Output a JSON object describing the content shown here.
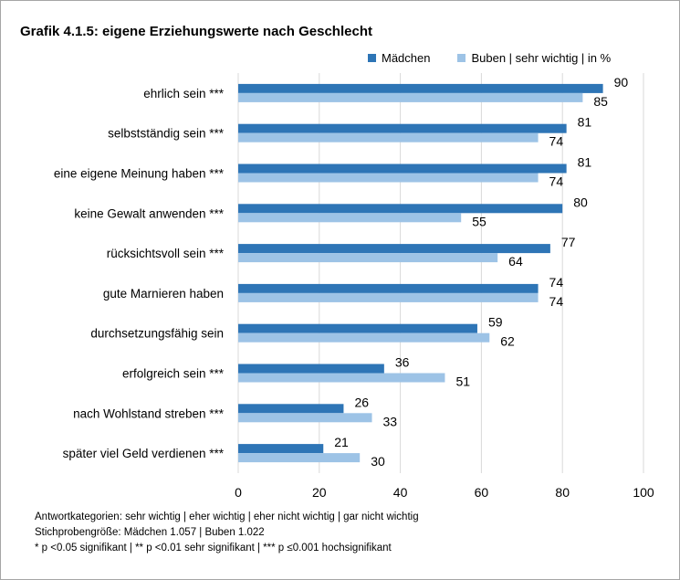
{
  "title": "Grafik 4.1.5: eigene Erziehungswerte nach Geschlecht",
  "legend": {
    "series1": "Mädchen",
    "series2": "Buben | sehr wichtig | in %"
  },
  "colors": {
    "series1": "#2e75b6",
    "series2": "#9dc3e6",
    "grid": "#d9d9d9"
  },
  "chart_data": {
    "type": "bar",
    "orientation": "horizontal",
    "categories": [
      "ehrlich sein ***",
      "selbstständig sein ***",
      "eine eigene Meinung haben ***",
      "keine Gewalt anwenden ***",
      "rücksichtsvoll sein ***",
      "gute Marnieren haben",
      "durchsetzungsfähig sein",
      "erfolgreich sein ***",
      "nach Wohlstand streben ***",
      "später viel Geld verdienen ***"
    ],
    "series": [
      {
        "name": "Mädchen",
        "values": [
          90,
          81,
          81,
          80,
          77,
          74,
          59,
          36,
          26,
          21
        ]
      },
      {
        "name": "Buben | sehr wichtig | in %",
        "values": [
          85,
          74,
          74,
          55,
          64,
          74,
          62,
          51,
          33,
          30
        ]
      }
    ],
    "xlim": [
      0,
      100
    ],
    "xticks": [
      0,
      20,
      40,
      60,
      80,
      100
    ],
    "grid": true,
    "legend_position": "top-right"
  },
  "footnotes": [
    "Antwortkategorien: sehr wichtig | eher wichtig | eher nicht wichtig | gar nicht wichtig",
    "Stichprobengröße: Mädchen 1.057 | Buben 1.022",
    "* p <0.05 signifikant  | ** p <0.01 sehr signifikant | *** p ≤0.001 hochsignifikant"
  ]
}
